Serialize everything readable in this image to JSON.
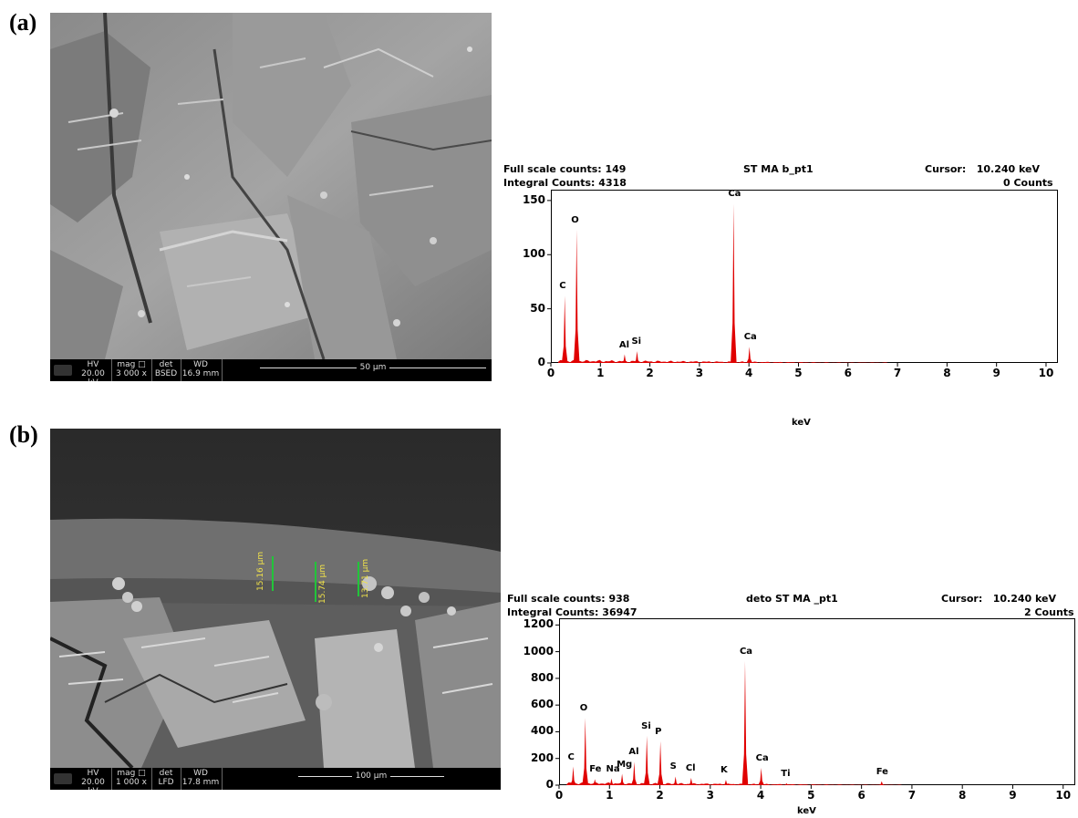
{
  "panels": [
    {
      "label": "(a)",
      "sem": {
        "hv_label": "HV",
        "hv": "20.00 kV",
        "mag_label": "mag □",
        "mag": "3 000 x",
        "det_label": "det",
        "det": "BSED",
        "wd_label": "WD",
        "wd": "16.9 mm",
        "scale": "50 µm"
      },
      "spectrum": {
        "full_scale": "Full scale counts: 149",
        "integral": "Integral Counts: 4318",
        "name": "ST MA b_pt1",
        "cursor": "Cursor:   10.240 keV",
        "counts": "0 Counts",
        "xlabel": "keV"
      }
    },
    {
      "label": "(b)",
      "sem": {
        "hv_label": "HV",
        "hv": "20.00 kV",
        "mag_label": "mag □",
        "mag": "1 000 x",
        "det_label": "det",
        "det": "LFD",
        "wd_label": "WD",
        "wd": "17.8 mm",
        "scale": "100 µm",
        "measurements": [
          "15.16 µm",
          "15.74 µm",
          "13.71 µm"
        ]
      },
      "spectrum": {
        "full_scale": "Full scale counts: 938",
        "integral": "Integral Counts: 36947",
        "name": "deto ST MA _pt1",
        "cursor": "Cursor:   10.240 keV",
        "counts": "2 Counts",
        "xlabel": "keV"
      }
    }
  ],
  "chart_data": [
    {
      "type": "line",
      "title": "ST MA b_pt1",
      "xlabel": "keV",
      "ylabel": "",
      "xlim": [
        0,
        10.24
      ],
      "ylim": [
        0,
        160
      ],
      "x_ticks": [
        0,
        1,
        2,
        3,
        4,
        5,
        6,
        7,
        8,
        9,
        10
      ],
      "y_ticks": [
        0,
        50,
        100,
        150
      ],
      "peaks": [
        {
          "label": "C",
          "x": 0.28,
          "y": 62
        },
        {
          "label": "O",
          "x": 0.52,
          "y": 123
        },
        {
          "label": "Al",
          "x": 1.49,
          "y": 8
        },
        {
          "label": "Si",
          "x": 1.74,
          "y": 11
        },
        {
          "label": "Ca",
          "x": 3.69,
          "y": 147
        },
        {
          "label": "Ca",
          "x": 4.01,
          "y": 15
        }
      ]
    },
    {
      "type": "line",
      "title": "deto ST MA _pt1",
      "xlabel": "keV",
      "ylabel": "",
      "xlim": [
        0,
        10.24
      ],
      "ylim": [
        0,
        1250
      ],
      "x_ticks": [
        0,
        1,
        2,
        3,
        4,
        5,
        6,
        7,
        8,
        9,
        10
      ],
      "y_ticks": [
        0,
        200,
        400,
        600,
        800,
        1000,
        1200
      ],
      "peaks": [
        {
          "label": "C",
          "x": 0.28,
          "y": 140
        },
        {
          "label": "O",
          "x": 0.52,
          "y": 505
        },
        {
          "label": "Fe",
          "x": 0.71,
          "y": 45
        },
        {
          "label": "Na",
          "x": 1.04,
          "y": 50
        },
        {
          "label": "Mg",
          "x": 1.25,
          "y": 85
        },
        {
          "label": "Al",
          "x": 1.49,
          "y": 175
        },
        {
          "label": "Si",
          "x": 1.74,
          "y": 370
        },
        {
          "label": "P",
          "x": 2.01,
          "y": 330
        },
        {
          "label": "S",
          "x": 2.31,
          "y": 65
        },
        {
          "label": "Cl",
          "x": 2.62,
          "y": 55
        },
        {
          "label": "K",
          "x": 3.31,
          "y": 40
        },
        {
          "label": "Ca",
          "x": 3.69,
          "y": 930
        },
        {
          "label": "Ca",
          "x": 4.01,
          "y": 130
        },
        {
          "label": "Ti",
          "x": 4.51,
          "y": 15
        },
        {
          "label": "Fe",
          "x": 6.4,
          "y": 30
        }
      ]
    }
  ]
}
